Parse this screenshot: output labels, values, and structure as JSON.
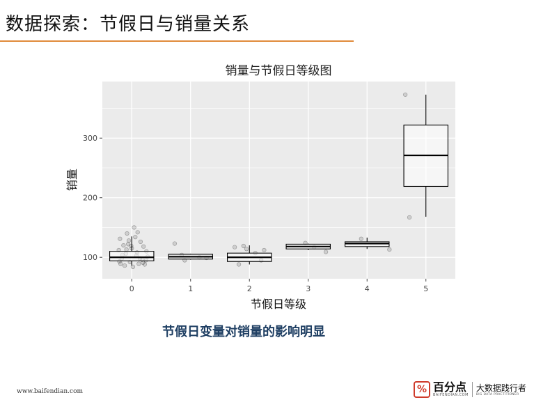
{
  "slide": {
    "title": "数据探索：节假日与销量关系",
    "caption": "节假日变量对销量的影响明显",
    "footer_url": "www.baifendian.com"
  },
  "brand": {
    "icon": "percent-icon",
    "icon_glyph": "%",
    "name": "百分点",
    "domain": "BAIFENDIAN.COM",
    "slogan_cn": "大数据践行者",
    "slogan_en": "BIG DATA PRACTITIONER"
  },
  "colors": {
    "accent_rule": "#e08a3a",
    "panel_bg": "#ebebeb",
    "grid": "#ffffff",
    "caption": "#1f3f63",
    "brand_red": "#cf3b2b"
  },
  "chart_data": {
    "type": "box",
    "title": "销量与节假日等级图",
    "xlabel": "节假日等级",
    "ylabel": "销量",
    "categories": [
      "0",
      "1",
      "2",
      "3",
      "4",
      "5"
    ],
    "ylim": [
      64,
      395
    ],
    "yticks": [
      100,
      200,
      300
    ],
    "grid": true,
    "boxes": [
      {
        "category": "0",
        "whisker_low": 86,
        "q1": 94,
        "median": 100,
        "q3": 110,
        "whisker_high": 135
      },
      {
        "category": "1",
        "whisker_low": 96,
        "q1": 97,
        "median": 101,
        "q3": 105,
        "whisker_high": 106
      },
      {
        "category": "2",
        "whisker_low": 88,
        "q1": 93,
        "median": 100,
        "q3": 107,
        "whisker_high": 120
      },
      {
        "category": "3",
        "whisker_low": 112,
        "q1": 114,
        "median": 118,
        "q3": 122,
        "whisker_high": 123
      },
      {
        "category": "4",
        "whisker_low": 114,
        "q1": 118,
        "median": 123,
        "q3": 126,
        "whisker_high": 133
      },
      {
        "category": "5",
        "whisker_low": 168,
        "q1": 219,
        "median": 271,
        "q3": 322,
        "whisker_high": 373
      }
    ],
    "points": [
      {
        "x": 0.92,
        "y": 140
      },
      {
        "x": 1.04,
        "y": 150
      },
      {
        "x": 1.1,
        "y": 142
      },
      {
        "x": 0.8,
        "y": 131
      },
      {
        "x": 0.95,
        "y": 128
      },
      {
        "x": 1.15,
        "y": 126
      },
      {
        "x": 0.86,
        "y": 120
      },
      {
        "x": 1.2,
        "y": 118
      },
      {
        "x": 0.78,
        "y": 112
      },
      {
        "x": 1.0,
        "y": 115
      },
      {
        "x": 1.25,
        "y": 110
      },
      {
        "x": 0.9,
        "y": 106
      },
      {
        "x": 1.08,
        "y": 103
      },
      {
        "x": 0.83,
        "y": 98
      },
      {
        "x": 1.18,
        "y": 96
      },
      {
        "x": 0.97,
        "y": 92
      },
      {
        "x": 1.12,
        "y": 89
      },
      {
        "x": 0.88,
        "y": 86
      },
      {
        "x": 1.22,
        "y": 88
      },
      {
        "x": 1.02,
        "y": 84
      },
      {
        "x": 0.79,
        "y": 93
      },
      {
        "x": 1.27,
        "y": 101
      },
      {
        "x": 0.94,
        "y": 122
      },
      {
        "x": 1.06,
        "y": 134
      },
      {
        "x": 1.14,
        "y": 98
      },
      {
        "x": 0.84,
        "y": 104
      },
      {
        "x": 1.19,
        "y": 91
      },
      {
        "x": 0.91,
        "y": 113
      },
      {
        "x": 1.09,
        "y": 108
      },
      {
        "x": 0.81,
        "y": 89
      },
      {
        "x": 1.24,
        "y": 95
      },
      {
        "x": 0.99,
        "y": 119
      },
      {
        "x": 1.73,
        "y": 123
      },
      {
        "x": 1.85,
        "y": 104
      },
      {
        "x": 2.15,
        "y": 100
      },
      {
        "x": 2.27,
        "y": 99
      },
      {
        "x": 1.9,
        "y": 95
      },
      {
        "x": 2.75,
        "y": 117
      },
      {
        "x": 2.9,
        "y": 119
      },
      {
        "x": 2.95,
        "y": 114
      },
      {
        "x": 3.1,
        "y": 107
      },
      {
        "x": 3.2,
        "y": 95
      },
      {
        "x": 3.25,
        "y": 112
      },
      {
        "x": 2.82,
        "y": 88
      },
      {
        "x": 3.95,
        "y": 124
      },
      {
        "x": 4.3,
        "y": 109
      },
      {
        "x": 4.1,
        "y": 117
      },
      {
        "x": 4.9,
        "y": 131
      },
      {
        "x": 5.38,
        "y": 113
      },
      {
        "x": 5.65,
        "y": 373
      },
      {
        "x": 5.72,
        "y": 167
      }
    ]
  }
}
